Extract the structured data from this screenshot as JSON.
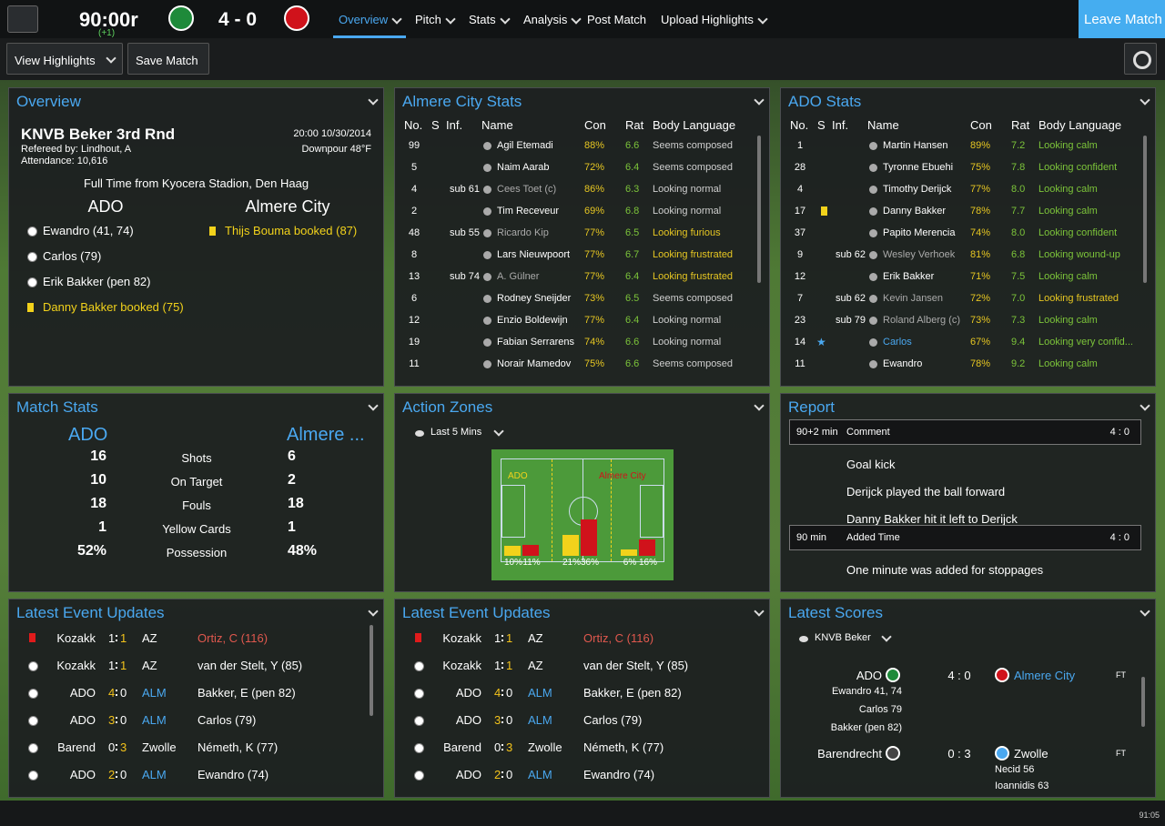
{
  "header": {
    "time": "90:00r",
    "added": "(+1)",
    "score": "4 - 0",
    "nav": [
      "Overview",
      "Pitch",
      "Stats",
      "Analysis",
      "Post Match",
      "Upload Highlights"
    ],
    "leave": "Leave Match"
  },
  "toolbar": {
    "highlights": "View Highlights",
    "save": "Save Match"
  },
  "overview": {
    "title": "Overview",
    "competition": "KNVB Beker 3rd Rnd",
    "datetime": "20:00 10/30/2014",
    "referee": "Refereed by: Lindhout, A",
    "weather": "Downpour 48°F",
    "attendance": "Attendance: 10,616",
    "venue": "Full Time from Kyocera Stadion, Den Haag",
    "home": "ADO",
    "away": "Almere City",
    "home_events": [
      {
        "text": "Ewandro (41, 74)"
      },
      {
        "text": "Carlos (79)"
      },
      {
        "text": "Erik Bakker (pen 82)"
      },
      {
        "text": "Danny Bakker booked (75)",
        "color": "#f2d21b"
      }
    ],
    "away_events": [
      {
        "text": "Thijs Bouma booked (87)",
        "color": "#f2d21b"
      }
    ]
  },
  "columns": [
    "No.",
    "S",
    "Inf.",
    "Name",
    "Con",
    "Rat",
    "Body Language"
  ],
  "almere_stats": {
    "title": "Almere City Stats",
    "rows": [
      {
        "no": "99",
        "inf": "",
        "name": "Agil Etemadi",
        "con": "88%",
        "rat": "6.6",
        "body": "Seems composed",
        "body_color": "#cfcfcf"
      },
      {
        "no": "5",
        "inf": "",
        "name": "Naim Aarab",
        "con": "72%",
        "rat": "6.4",
        "body": "Seems composed",
        "body_color": "#cfcfcf"
      },
      {
        "no": "4",
        "inf": "sub 61",
        "name": "Cees Toet (c)",
        "con": "86%",
        "rat": "6.3",
        "body": "Looking normal",
        "body_color": "#cfcfcf"
      },
      {
        "no": "2",
        "inf": "",
        "name": "Tim Receveur",
        "con": "69%",
        "rat": "6.8",
        "body": "Looking normal",
        "body_color": "#cfcfcf"
      },
      {
        "no": "48",
        "inf": "sub 55",
        "name": "Ricardo Kip",
        "con": "77%",
        "rat": "6.5",
        "body": "Looking furious",
        "body_color": "#e6c622"
      },
      {
        "no": "8",
        "inf": "",
        "name": "Lars Nieuwpoort",
        "con": "77%",
        "rat": "6.7",
        "body": "Looking frustrated",
        "body_color": "#e6c622"
      },
      {
        "no": "13",
        "inf": "sub 74",
        "name": "A. Gülner",
        "con": "77%",
        "rat": "6.4",
        "body": "Looking frustrated",
        "body_color": "#e6c622"
      },
      {
        "no": "6",
        "inf": "",
        "name": "Rodney Sneijder",
        "con": "73%",
        "rat": "6.5",
        "body": "Seems composed",
        "body_color": "#cfcfcf"
      },
      {
        "no": "12",
        "inf": "",
        "name": "Enzio Boldewijn",
        "con": "77%",
        "rat": "6.4",
        "body": "Looking normal",
        "body_color": "#cfcfcf"
      },
      {
        "no": "19",
        "inf": "",
        "name": "Fabian Serrarens",
        "con": "74%",
        "rat": "6.6",
        "body": "Looking normal",
        "body_color": "#cfcfcf"
      },
      {
        "no": "11",
        "inf": "",
        "name": "Norair Mamedov",
        "con": "75%",
        "rat": "6.6",
        "body": "Seems composed",
        "body_color": "#cfcfcf"
      }
    ]
  },
  "ado_stats": {
    "title": "ADO Stats",
    "rows": [
      {
        "no": "1",
        "inf": "",
        "name": "Martin Hansen",
        "con": "89%",
        "rat": "7.2",
        "body": "Looking calm",
        "body_color": "#7cc43a"
      },
      {
        "no": "28",
        "inf": "",
        "name": "Tyronne Ebuehi",
        "con": "75%",
        "rat": "7.8",
        "body": "Looking confident",
        "body_color": "#7cc43a"
      },
      {
        "no": "4",
        "inf": "",
        "name": "Timothy Derijck",
        "con": "77%",
        "rat": "8.0",
        "body": "Looking calm",
        "body_color": "#7cc43a"
      },
      {
        "no": "17",
        "card": "#f2d21b",
        "inf": "",
        "name": "Danny Bakker",
        "con": "78%",
        "rat": "7.7",
        "body": "Looking calm",
        "body_color": "#7cc43a"
      },
      {
        "no": "37",
        "inf": "",
        "name": "Papito Merencia",
        "con": "74%",
        "rat": "8.0",
        "body": "Looking confident",
        "body_color": "#7cc43a"
      },
      {
        "no": "9",
        "inf": "sub 62",
        "name": "Wesley Verhoek",
        "con": "81%",
        "rat": "6.8",
        "body": "Looking wound-up",
        "body_color": "#7cc43a"
      },
      {
        "no": "12",
        "inf": "",
        "name": "Erik Bakker",
        "con": "71%",
        "rat": "7.5",
        "body": "Looking calm",
        "body_color": "#7cc43a"
      },
      {
        "no": "7",
        "inf": "sub 62",
        "name": "Kevin Jansen",
        "con": "72%",
        "rat": "7.0",
        "body": "Looking frustrated",
        "body_color": "#e6c622"
      },
      {
        "no": "23",
        "inf": "sub 79",
        "name": "Roland Alberg (c)",
        "con": "73%",
        "rat": "7.3",
        "body": "Looking calm",
        "body_color": "#7cc43a"
      },
      {
        "no": "14",
        "s": "★",
        "inf": "",
        "name": "Carlos",
        "con": "67%",
        "rat": "9.4",
        "body": "Looking very confid...",
        "body_color": "#7cc43a"
      },
      {
        "no": "11",
        "inf": "",
        "name": "Ewandro",
        "con": "78%",
        "rat": "9.2",
        "body": "Looking calm",
        "body_color": "#7cc43a"
      }
    ]
  },
  "match_stats": {
    "title": "Match Stats",
    "home": "ADO",
    "away": "Almere ...",
    "rows": [
      [
        "16",
        "Shots",
        "6"
      ],
      [
        "10",
        "On Target",
        "2"
      ],
      [
        "18",
        "Fouls",
        "18"
      ],
      [
        "1",
        "Yellow Cards",
        "1"
      ],
      [
        "52%",
        "Possession",
        "48%"
      ]
    ]
  },
  "action_zones": {
    "title": "Action Zones",
    "filter": "Last 5 Mins",
    "home": "ADO",
    "away": "Almere City",
    "home_color": "#f2d21b",
    "away_color": "#d0121b",
    "home_values": [
      10,
      21,
      6
    ],
    "home_value_labels": [
      "10%",
      "21%",
      "6%"
    ],
    "away_values": [
      11,
      36,
      16
    ],
    "away_value_labels": [
      "11%",
      "36%",
      "16%"
    ]
  },
  "report": {
    "title": "Report",
    "entries": [
      {
        "time": "90+2 min",
        "type": "Comment",
        "score": "4 : 0",
        "lines": [
          "Goal kick",
          "Derijck played the ball forward",
          "Danny Bakker hit it left to Derijck"
        ]
      },
      {
        "time": "90 min",
        "type": "Added Time",
        "score": "4 : 0",
        "lines": [
          "One minute was added for stoppages"
        ]
      }
    ]
  },
  "event_updates": [
    {
      "title": "Latest Event Updates"
    },
    {
      "title": "Latest Event Updates"
    }
  ],
  "events": [
    {
      "card": "#e01b1b",
      "home": "Kozakk",
      "hs": "1",
      "as": "1",
      "away": "AZ",
      "desc": "Ortiz, C (116)",
      "hs_color": "#ffffff",
      "as_color": "#f2c21b",
      "away_color": "#ffffff",
      "desc_color": "#e0584e"
    },
    {
      "home": "Kozakk",
      "hs": "1",
      "as": "1",
      "away": "AZ",
      "desc": "van der Stelt, Y (85)",
      "hs_color": "#ffffff",
      "as_color": "#f2c21b",
      "away_color": "#ffffff",
      "desc_color": "#ffffff"
    },
    {
      "home": "ADO",
      "hs": "4",
      "as": "0",
      "away": "ALM",
      "desc": "Bakker, E (pen 82)",
      "hs_color": "#f2c21b",
      "as_color": "#ffffff",
      "away_color": "#4aa8f0",
      "desc_color": "#ffffff"
    },
    {
      "home": "ADO",
      "hs": "3",
      "as": "0",
      "away": "ALM",
      "desc": "Carlos (79)",
      "hs_color": "#f2c21b",
      "as_color": "#ffffff",
      "away_color": "#4aa8f0",
      "desc_color": "#ffffff"
    },
    {
      "home": "Barend",
      "hs": "0",
      "as": "3",
      "away": "Zwolle",
      "desc": "Németh, K (77)",
      "hs_color": "#ffffff",
      "as_color": "#f2c21b",
      "away_color": "#ffffff",
      "desc_color": "#ffffff"
    },
    {
      "home": "ADO",
      "hs": "2",
      "as": "0",
      "away": "ALM",
      "desc": "Ewandro (74)",
      "hs_color": "#f2c21b",
      "as_color": "#ffffff",
      "away_color": "#4aa8f0",
      "desc_color": "#ffffff"
    }
  ],
  "latest_scores": {
    "title": "Latest Scores",
    "filter": "KNVB Beker",
    "matches": [
      {
        "home": "ADO",
        "score": "4 : 0",
        "away": "Almere City",
        "status": "FT",
        "home_scorers": [
          "Ewandro 41, 74",
          "Carlos 79",
          "Bakker (pen 82)"
        ],
        "away_scorers": []
      },
      {
        "home": "Barendrecht",
        "score": "0 : 3",
        "away": "Zwolle",
        "status": "FT",
        "home_scorers": [],
        "away_scorers": [
          "Necid 56",
          "Ioannidis 63"
        ]
      }
    ]
  },
  "clock": "91:05"
}
